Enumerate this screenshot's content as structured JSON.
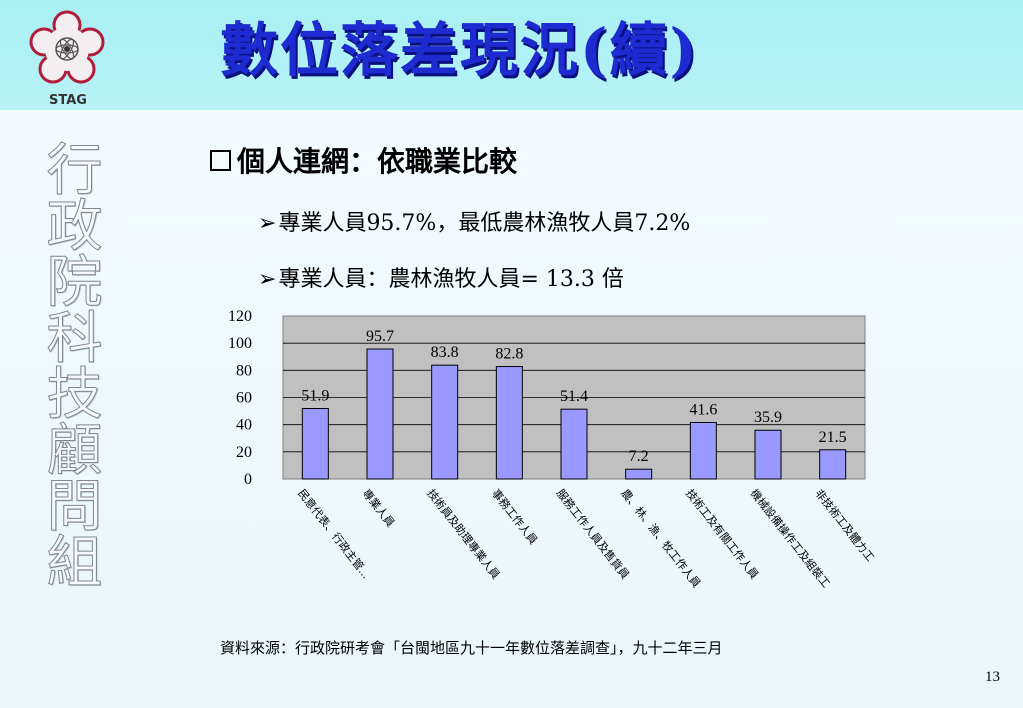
{
  "header": {
    "title": "數位落差現況(續)",
    "logo_text": "STAG"
  },
  "side_vertical_text": "行政院科技顧問組",
  "content": {
    "heading": "個人連網：依職業比較",
    "bullets": [
      "專業人員95.7%，最低農林漁牧人員7.2%",
      "專業人員：農林漁牧人員= 13.3 倍"
    ]
  },
  "chart_data": {
    "type": "bar",
    "categories": [
      "民意代表、行政主管...",
      "專業人員",
      "技術員及助理專業人員",
      "事務工作人員",
      "服務工作人員及售貨員",
      "農、林、漁、牧工作人員",
      "技術工及有關工作人員",
      "機械設備操作工及組裝工",
      "非技術工及體力工"
    ],
    "values": [
      51.9,
      95.7,
      83.8,
      82.8,
      51.4,
      7.2,
      41.6,
      35.9,
      21.5
    ],
    "ylim": [
      0,
      120
    ],
    "yticks": [
      "0",
      "20",
      "40",
      "60",
      "80",
      "100",
      "120"
    ],
    "grid": true,
    "colors": {
      "bar": "#9999ff",
      "plot_bg": "#c0c0c0",
      "grid": "#000000"
    }
  },
  "footer": {
    "source": "資料來源：行政院研考會「台閩地區九十一年數位落差調查」，九十二年三月",
    "page_number": "13"
  }
}
